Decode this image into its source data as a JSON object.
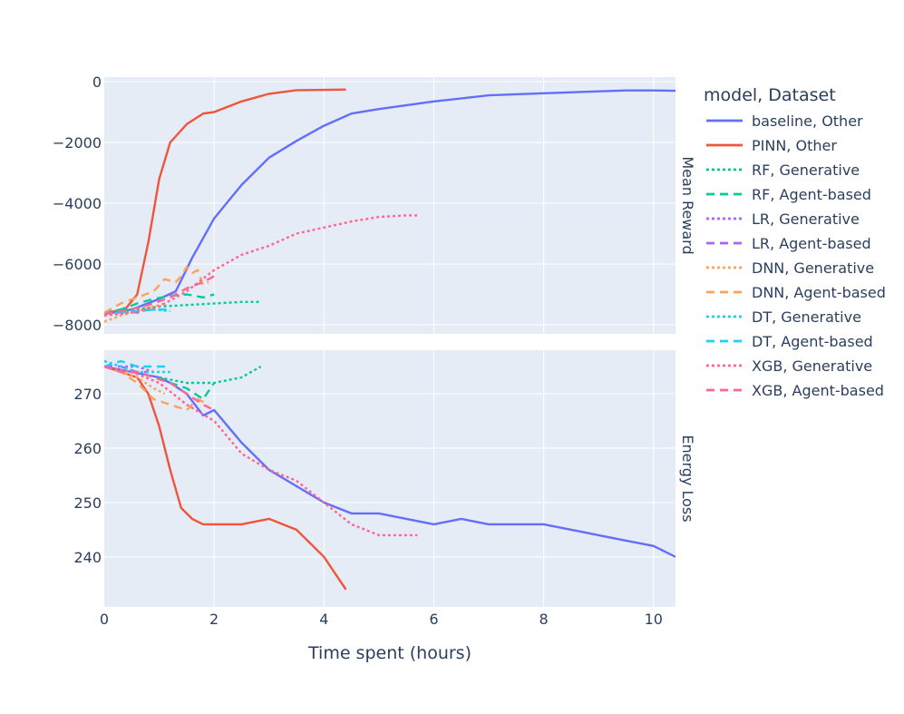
{
  "chart_data": {
    "type": "line",
    "xlabel": "Time spent (hours)",
    "xlim": [
      0,
      10.4
    ],
    "x_ticks": [
      0,
      2,
      4,
      6,
      8,
      10
    ],
    "x_tick_labels": [
      "0",
      "2",
      "4",
      "6",
      "8",
      "10"
    ],
    "legend_title": "model, Dataset",
    "legend_position": "right",
    "grid": true,
    "colors": {
      "plot_bg": "#E5ECF6",
      "grid": "#ffffff",
      "text": "#2a3f5f"
    },
    "legend": [
      {
        "label": "baseline, Other",
        "color": "#636EFA",
        "dash": "solid"
      },
      {
        "label": "PINN, Other",
        "color": "#EF553B",
        "dash": "solid"
      },
      {
        "label": "RF, Generative",
        "color": "#00CC96",
        "dash": "dot"
      },
      {
        "label": "RF, Agent-based",
        "color": "#00CC96",
        "dash": "dash"
      },
      {
        "label": "LR, Generative",
        "color": "#AB63FA",
        "dash": "dot"
      },
      {
        "label": "LR, Agent-based",
        "color": "#AB63FA",
        "dash": "dash"
      },
      {
        "label": "DNN, Generative",
        "color": "#FFA15A",
        "dash": "dot"
      },
      {
        "label": "DNN, Agent-based",
        "color": "#FFA15A",
        "dash": "dash"
      },
      {
        "label": "DT, Generative",
        "color": "#19D3F3",
        "dash": "dot"
      },
      {
        "label": "DT, Agent-based",
        "color": "#19D3F3",
        "dash": "dash"
      },
      {
        "label": "XGB, Generative",
        "color": "#FF6692",
        "dash": "dot"
      },
      {
        "label": "XGB, Agent-based",
        "color": "#FF6692",
        "dash": "dash"
      }
    ],
    "panels": [
      {
        "facet_label": "Mean Reward",
        "ylim": [
          -8300,
          150
        ],
        "y_ticks": [
          0,
          -2000,
          -4000,
          -6000,
          -8000
        ],
        "y_tick_labels": [
          "0",
          "−2000",
          "−4000",
          "−6000",
          "−8000"
        ],
        "series": [
          {
            "name": "baseline, Other",
            "x": [
              0,
              0.5,
              1.0,
              1.3,
              1.6,
              2.0,
              2.5,
              3.0,
              3.5,
              4.0,
              4.5,
              5.0,
              6.0,
              7.0,
              8.0,
              9.0,
              9.5,
              10.0,
              10.4
            ],
            "y": [
              -7650,
              -7500,
              -7150,
              -6900,
              -5800,
              -4500,
              -3400,
              -2500,
              -1950,
              -1450,
              -1050,
              -900,
              -650,
              -450,
              -380,
              -320,
              -290,
              -290,
              -300
            ]
          },
          {
            "name": "PINN, Other",
            "x": [
              0,
              0.4,
              0.6,
              0.8,
              1.0,
              1.2,
              1.5,
              1.8,
              2.0,
              2.5,
              3.0,
              3.5,
              4.0,
              4.4
            ],
            "y": [
              -7650,
              -7450,
              -7000,
              -5300,
              -3200,
              -2000,
              -1400,
              -1050,
              -1000,
              -650,
              -400,
              -280,
              -270,
              -260
            ]
          },
          {
            "name": "RF, Generative",
            "x": [
              0,
              0.5,
              1.0,
              1.5,
              2.0,
              2.5,
              2.85
            ],
            "y": [
              -7600,
              -7500,
              -7400,
              -7350,
              -7300,
              -7250,
              -7250
            ]
          },
          {
            "name": "RF, Agent-based",
            "x": [
              0,
              0.3,
              0.6,
              0.9,
              1.2,
              1.5,
              1.8,
              2.0
            ],
            "y": [
              -7600,
              -7500,
              -7300,
              -7150,
              -7050,
              -7000,
              -7100,
              -7000
            ]
          },
          {
            "name": "LR, Generative",
            "x": [
              0,
              0.3,
              0.6,
              0.9
            ],
            "y": [
              -7650,
              -7600,
              -7550,
              -7500
            ]
          },
          {
            "name": "LR, Agent-based",
            "x": [
              0,
              0.3,
              0.6,
              0.8
            ],
            "y": [
              -7650,
              -7550,
              -7600,
              -7500
            ]
          },
          {
            "name": "DNN, Generative",
            "x": [
              0,
              0.3,
              0.6,
              0.9,
              1.1
            ],
            "y": [
              -7900,
              -7700,
              -7550,
              -7400,
              -7300
            ]
          },
          {
            "name": "DNN, Agent-based",
            "x": [
              0,
              0.3,
              0.6,
              0.9,
              1.1,
              1.3,
              1.4,
              1.5,
              1.6,
              1.7,
              1.8,
              1.9
            ],
            "y": [
              -7600,
              -7300,
              -7100,
              -6900,
              -6500,
              -6600,
              -6400,
              -6100,
              -6300,
              -6200,
              -6700,
              -6600
            ]
          },
          {
            "name": "DT, Generative",
            "x": [
              0,
              0.3,
              0.6,
              0.9,
              1.2
            ],
            "y": [
              -7650,
              -7600,
              -7550,
              -7500,
              -7550
            ]
          },
          {
            "name": "DT, Agent-based",
            "x": [
              0,
              0.3,
              0.6,
              0.9,
              1.2
            ],
            "y": [
              -7650,
              -7600,
              -7550,
              -7500,
              -7500
            ]
          },
          {
            "name": "XGB, Generative",
            "x": [
              0,
              0.5,
              1.0,
              1.5,
              2.0,
              2.5,
              3.0,
              3.5,
              4.0,
              4.5,
              5.0,
              5.5,
              5.7
            ],
            "y": [
              -7700,
              -7600,
              -7400,
              -6900,
              -6200,
              -5700,
              -5400,
              -5000,
              -4800,
              -4600,
              -4450,
              -4400,
              -4400
            ]
          },
          {
            "name": "XGB, Agent-based",
            "x": [
              0,
              0.3,
              0.6,
              0.9,
              1.2,
              1.5,
              1.8,
              2.0
            ],
            "y": [
              -7650,
              -7550,
              -7450,
              -7300,
              -7100,
              -6800,
              -6600,
              -6400
            ]
          }
        ]
      },
      {
        "facet_label": "Energy Loss",
        "ylim": [
          230.8,
          278
        ],
        "y_ticks": [
          270,
          260,
          250,
          240
        ],
        "y_tick_labels": [
          "270",
          "260",
          "250",
          "240"
        ],
        "series": [
          {
            "name": "baseline, Other",
            "x": [
              0,
              0.5,
              1.0,
              1.2,
              1.5,
              1.8,
              2.0,
              2.5,
              3.0,
              3.5,
              4.0,
              4.5,
              5.0,
              5.5,
              6.0,
              6.5,
              7.0,
              7.5,
              8.0,
              8.5,
              9.0,
              9.5,
              10.0,
              10.4
            ],
            "y": [
              275,
              274,
              273,
              272,
              270,
              266,
              267,
              261,
              256,
              253,
              250,
              248,
              248,
              247,
              246,
              247,
              246,
              246,
              246,
              245,
              244,
              243,
              242,
              240
            ]
          },
          {
            "name": "PINN, Other",
            "x": [
              0,
              0.3,
              0.6,
              0.8,
              1.0,
              1.2,
              1.4,
              1.6,
              1.8,
              2.0,
              2.5,
              3.0,
              3.5,
              4.0,
              4.4
            ],
            "y": [
              275,
              274,
              273,
              270,
              264,
              256,
              249,
              247,
              246,
              246,
              246,
              247,
              245,
              240,
              234
            ]
          },
          {
            "name": "RF, Generative",
            "x": [
              1.0,
              1.5,
              2.0,
              2.5,
              2.85
            ],
            "y": [
              273,
              272,
              272,
              273,
              275
            ]
          },
          {
            "name": "RF, Agent-based",
            "x": [
              0,
              0.3,
              0.6,
              0.9,
              1.2,
              1.5,
              1.8,
              2.0
            ],
            "y": [
              275,
              274,
              274,
              273,
              272,
              271,
              269,
              272
            ]
          },
          {
            "name": "LR, Generative",
            "x": [
              0,
              0.3,
              0.6,
              0.9
            ],
            "y": [
              276,
              275,
              275,
              274
            ]
          },
          {
            "name": "LR, Agent-based",
            "x": [
              0,
              0.3,
              0.6,
              0.8
            ],
            "y": [
              275,
              275,
              274,
              274
            ]
          },
          {
            "name": "DNN, Generative",
            "x": [
              0,
              0.3,
              0.6,
              0.9,
              1.1
            ],
            "y": [
              275,
              274,
              273,
              271,
              270
            ]
          },
          {
            "name": "DNN, Agent-based",
            "x": [
              0,
              0.3,
              0.6,
              0.9,
              1.2,
              1.5,
              1.7,
              1.9
            ],
            "y": [
              275,
              274,
              272,
              269,
              268,
              267,
              269,
              268
            ]
          },
          {
            "name": "DT, Generative",
            "x": [
              0,
              0.3,
              0.6,
              0.9,
              1.2
            ],
            "y": [
              276,
              275,
              274,
              274,
              274
            ]
          },
          {
            "name": "DT, Agent-based",
            "x": [
              0,
              0.3,
              0.6,
              0.9,
              1.2
            ],
            "y": [
              275,
              276,
              275,
              275,
              275
            ]
          },
          {
            "name": "XGB, Generative",
            "x": [
              0,
              0.5,
              1.0,
              1.5,
              2.0,
              2.5,
              3.0,
              3.5,
              4.0,
              4.5,
              5.0,
              5.5,
              5.7
            ],
            "y": [
              275,
              274,
              272,
              268,
              265,
              259,
              256,
              254,
              250,
              246,
              244,
              244,
              244
            ]
          },
          {
            "name": "XGB, Agent-based",
            "x": [
              0,
              0.3,
              0.6,
              0.9,
              1.2,
              1.5,
              1.8,
              2.0
            ],
            "y": [
              275,
              274,
              274,
              273,
              272,
              270,
              268,
              267
            ]
          }
        ]
      }
    ]
  }
}
